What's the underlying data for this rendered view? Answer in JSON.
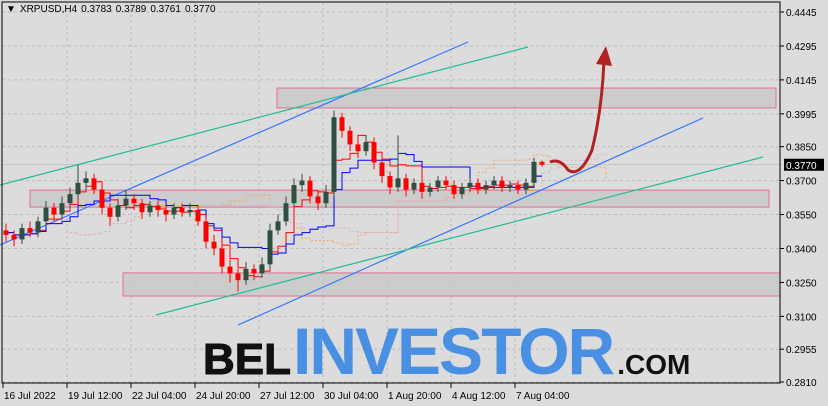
{
  "header": {
    "symbol": "XRPUSD,H4",
    "open": "0.3783",
    "high": "0.3789",
    "low": "0.3761",
    "close": "0.3770"
  },
  "logo": {
    "part1": "BEL",
    "part2": "INVESTOR",
    "part3": ".COM"
  },
  "colors": {
    "background": "#dcdcdc",
    "bull_candle": "#2f4f3f",
    "bear_candle": "#ff0000",
    "tenkan": "#ff0000",
    "kijun": "#0000ff",
    "cloud": "#f4a460",
    "channel_blue": "#3377ff",
    "channel_green": "#22bb99",
    "zone_border": "#e07090",
    "arrow": "#b22222",
    "logo_blue": "#4a90e2"
  },
  "chart_data": {
    "type": "candlestick",
    "title": "XRPUSD,H4",
    "xlabel": "",
    "ylabel": "",
    "ylim": [
      0.281,
      0.4445
    ],
    "grid": true,
    "y_ticks": [
      "0.4445",
      "0.4295",
      "0.4145",
      "0.3995",
      "0.3850",
      "0.3700",
      "0.3550",
      "0.3400",
      "0.3250",
      "0.3100",
      "0.2955",
      "0.2810"
    ],
    "x_ticks": [
      "16 Jul 2022",
      "19 Jul 12:00",
      "22 Jul 04:00",
      "24 Jul 20:00",
      "27 Jul 12:00",
      "30 Jul 04:00",
      "1 Aug 20:00",
      "4 Aug 12:00",
      "7 Aug 04:00"
    ],
    "last_price": "0.3770",
    "ohlc": [
      [
        0.348,
        0.351,
        0.343,
        0.346
      ],
      [
        0.346,
        0.348,
        0.341,
        0.344
      ],
      [
        0.344,
        0.351,
        0.342,
        0.349
      ],
      [
        0.349,
        0.352,
        0.345,
        0.347
      ],
      [
        0.347,
        0.354,
        0.345,
        0.352
      ],
      [
        0.352,
        0.361,
        0.35,
        0.358
      ],
      [
        0.358,
        0.36,
        0.352,
        0.355
      ],
      [
        0.355,
        0.363,
        0.353,
        0.36
      ],
      [
        0.36,
        0.367,
        0.358,
        0.364
      ],
      [
        0.364,
        0.377,
        0.362,
        0.369
      ],
      [
        0.369,
        0.374,
        0.366,
        0.371
      ],
      [
        0.371,
        0.373,
        0.364,
        0.366
      ],
      [
        0.366,
        0.368,
        0.355,
        0.358
      ],
      [
        0.358,
        0.36,
        0.35,
        0.354
      ],
      [
        0.354,
        0.362,
        0.352,
        0.359
      ],
      [
        0.359,
        0.366,
        0.357,
        0.362
      ],
      [
        0.362,
        0.364,
        0.357,
        0.36
      ],
      [
        0.36,
        0.362,
        0.353,
        0.356
      ],
      [
        0.356,
        0.361,
        0.354,
        0.359
      ],
      [
        0.359,
        0.361,
        0.354,
        0.357
      ],
      [
        0.357,
        0.359,
        0.352,
        0.355
      ],
      [
        0.355,
        0.36,
        0.353,
        0.358
      ],
      [
        0.358,
        0.36,
        0.354,
        0.356
      ],
      [
        0.356,
        0.36,
        0.354,
        0.357
      ],
      [
        0.357,
        0.359,
        0.35,
        0.352
      ],
      [
        0.352,
        0.354,
        0.34,
        0.343
      ],
      [
        0.343,
        0.346,
        0.337,
        0.34
      ],
      [
        0.34,
        0.342,
        0.329,
        0.332
      ],
      [
        0.332,
        0.335,
        0.325,
        0.329
      ],
      [
        0.329,
        0.331,
        0.321,
        0.326
      ],
      [
        0.326,
        0.334,
        0.324,
        0.331
      ],
      [
        0.331,
        0.333,
        0.326,
        0.329
      ],
      [
        0.329,
        0.336,
        0.327,
        0.333
      ],
      [
        0.333,
        0.351,
        0.331,
        0.348
      ],
      [
        0.348,
        0.355,
        0.346,
        0.352
      ],
      [
        0.352,
        0.363,
        0.35,
        0.36
      ],
      [
        0.36,
        0.371,
        0.358,
        0.368
      ],
      [
        0.368,
        0.373,
        0.365,
        0.37
      ],
      [
        0.37,
        0.372,
        0.36,
        0.363
      ],
      [
        0.363,
        0.365,
        0.357,
        0.36
      ],
      [
        0.36,
        0.368,
        0.358,
        0.365
      ],
      [
        0.365,
        0.401,
        0.363,
        0.398
      ],
      [
        0.398,
        0.4,
        0.389,
        0.392
      ],
      [
        0.392,
        0.394,
        0.383,
        0.386
      ],
      [
        0.386,
        0.388,
        0.38,
        0.383
      ],
      [
        0.383,
        0.39,
        0.381,
        0.387
      ],
      [
        0.387,
        0.389,
        0.375,
        0.378
      ],
      [
        0.378,
        0.38,
        0.369,
        0.372
      ],
      [
        0.372,
        0.374,
        0.364,
        0.367
      ],
      [
        0.367,
        0.39,
        0.365,
        0.371
      ],
      [
        0.371,
        0.373,
        0.363,
        0.366
      ],
      [
        0.366,
        0.371,
        0.364,
        0.369
      ],
      [
        0.369,
        0.371,
        0.362,
        0.365
      ],
      [
        0.365,
        0.369,
        0.363,
        0.367
      ],
      [
        0.367,
        0.372,
        0.365,
        0.37
      ],
      [
        0.37,
        0.372,
        0.366,
        0.368
      ],
      [
        0.368,
        0.37,
        0.362,
        0.364
      ],
      [
        0.364,
        0.369,
        0.362,
        0.367
      ],
      [
        0.367,
        0.371,
        0.365,
        0.369
      ],
      [
        0.369,
        0.371,
        0.364,
        0.366
      ],
      [
        0.366,
        0.37,
        0.364,
        0.368
      ],
      [
        0.368,
        0.372,
        0.366,
        0.37
      ],
      [
        0.37,
        0.372,
        0.365,
        0.367
      ],
      [
        0.367,
        0.37,
        0.365,
        0.368
      ],
      [
        0.368,
        0.37,
        0.364,
        0.366
      ],
      [
        0.366,
        0.371,
        0.364,
        0.369
      ],
      [
        0.369,
        0.38,
        0.368,
        0.3783
      ],
      [
        0.3783,
        0.3789,
        0.3761,
        0.377
      ]
    ],
    "zones": [
      [
        0.4021,
        0.4109
      ],
      [
        0.3583,
        0.3658
      ],
      [
        0.319,
        0.3292
      ]
    ]
  }
}
